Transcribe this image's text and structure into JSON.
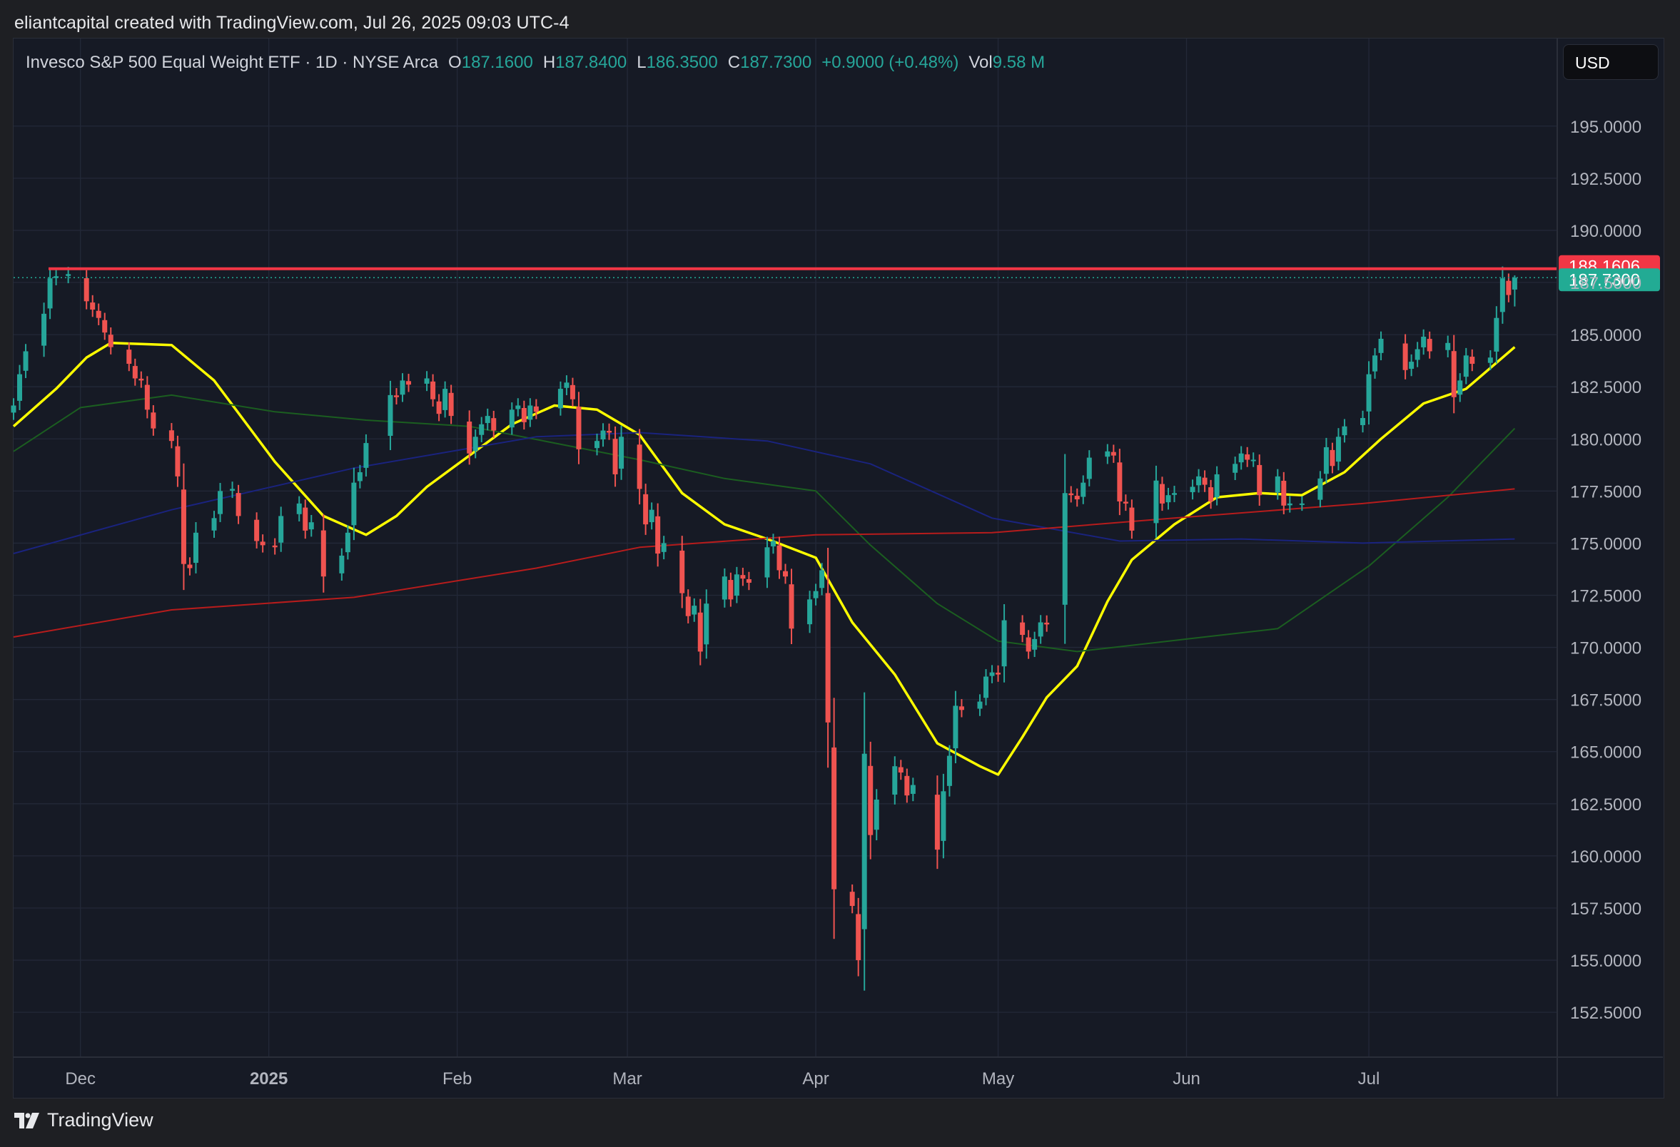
{
  "header": {
    "caption": "eliantcapital created with TradingView.com, Jul 26, 2025 09:03 UTC-4"
  },
  "legend": {
    "symbol": "Invesco S&P 500 Equal Weight ETF · 1D · NYSE Arca",
    "open_label": "O",
    "open": "187.1600",
    "high_label": "H",
    "high": "187.8400",
    "low_label": "L",
    "low": "186.3500",
    "close_label": "C",
    "close": "187.7300",
    "change": "+0.9000 (+0.48%)",
    "vol_label": "Vol",
    "vol": "9.58 M"
  },
  "currency_button": {
    "label": "USD"
  },
  "footer": {
    "brand": "TradingView"
  },
  "colors": {
    "up": "#26a69a",
    "down": "#ef5350",
    "background": "#161a25",
    "grid": "#232838",
    "ma_yellow": "#ffff00",
    "ma_green": "#1b5e20",
    "ma_blue": "#1a237e",
    "ma_red": "#b71c1c",
    "resistance": "#f23645"
  },
  "chart_data": {
    "type": "candlestick",
    "title": "",
    "y_axis": {
      "ylim": [
        150.35,
        199.2
      ],
      "ticks": [
        "195.0000",
        "192.5000",
        "190.0000",
        "187.5000",
        "185.0000",
        "182.5000",
        "180.0000",
        "177.5000",
        "175.0000",
        "172.5000",
        "170.0000",
        "167.5000",
        "165.0000",
        "162.5000",
        "160.0000",
        "157.5000",
        "155.0000",
        "152.5000"
      ]
    },
    "x_axis": {
      "start": "2024-11-20",
      "end": "2025-08-01",
      "ticks": [
        {
          "date": "2024-12-01",
          "label": "Dec",
          "bold": false
        },
        {
          "date": "2025-01-01",
          "label": "2025",
          "bold": true
        },
        {
          "date": "2025-02-01",
          "label": "Feb",
          "bold": false
        },
        {
          "date": "2025-03-01",
          "label": "Mar",
          "bold": false
        },
        {
          "date": "2025-04-01",
          "label": "Apr",
          "bold": false
        },
        {
          "date": "2025-05-01",
          "label": "May",
          "bold": false
        },
        {
          "date": "2025-06-01",
          "label": "Jun",
          "bold": false
        },
        {
          "date": "2025-07-01",
          "label": "Jul",
          "bold": false
        }
      ]
    },
    "price_labels": [
      {
        "value": 188.1606,
        "label": "188.1606",
        "color": "#f23645"
      },
      {
        "value": 187.73,
        "label": "187.7300",
        "color": "#22ab94"
      }
    ],
    "resistance_level": 188.1606,
    "last_price": 187.73,
    "closes": [
      [
        "2024-11-20",
        181.6
      ],
      [
        "2024-11-21",
        183.1
      ],
      [
        "2024-11-22",
        184.2
      ],
      [
        "2024-11-25",
        186.0
      ],
      [
        "2024-11-26",
        187.7
      ],
      [
        "2024-11-27",
        187.8
      ],
      [
        "2024-11-29",
        187.9
      ],
      [
        "2024-12-02",
        186.6
      ],
      [
        "2024-12-03",
        186.2
      ],
      [
        "2024-12-04",
        185.8
      ],
      [
        "2024-12-05",
        185.1
      ],
      [
        "2024-12-06",
        184.4
      ],
      [
        "2024-12-09",
        183.6
      ],
      [
        "2024-12-10",
        182.9
      ],
      [
        "2024-12-11",
        182.8
      ],
      [
        "2024-12-12",
        181.4
      ],
      [
        "2024-12-13",
        180.5
      ],
      [
        "2024-12-16",
        179.9
      ],
      [
        "2024-12-17",
        178.2
      ],
      [
        "2024-12-18",
        174.0
      ],
      [
        "2024-12-19",
        173.8
      ],
      [
        "2024-12-20",
        175.5
      ],
      [
        "2024-12-23",
        176.2
      ],
      [
        "2024-12-24",
        177.5
      ],
      [
        "2024-12-26",
        177.6
      ],
      [
        "2024-12-27",
        176.3
      ],
      [
        "2024-12-30",
        175.1
      ],
      [
        "2024-12-31",
        174.9
      ],
      [
        "2025-01-02",
        174.8
      ],
      [
        "2025-01-03",
        176.3
      ],
      [
        "2025-01-06",
        176.9
      ],
      [
        "2025-01-07",
        175.6
      ],
      [
        "2025-01-08",
        176.0
      ],
      [
        "2025-01-10",
        173.4
      ],
      [
        "2025-01-13",
        174.4
      ],
      [
        "2025-01-14",
        175.5
      ],
      [
        "2025-01-15",
        177.9
      ],
      [
        "2025-01-16",
        178.4
      ],
      [
        "2025-01-17",
        179.8
      ],
      [
        "2025-01-21",
        182.1
      ],
      [
        "2025-01-22",
        182.0
      ],
      [
        "2025-01-23",
        182.8
      ],
      [
        "2025-01-24",
        182.6
      ],
      [
        "2025-01-27",
        182.9
      ],
      [
        "2025-01-28",
        181.9
      ],
      [
        "2025-01-29",
        181.2
      ],
      [
        "2025-01-30",
        182.4
      ],
      [
        "2025-01-31",
        181.1
      ],
      [
        "2025-02-03",
        179.3
      ],
      [
        "2025-02-04",
        180.1
      ],
      [
        "2025-02-05",
        180.7
      ],
      [
        "2025-02-06",
        181.1
      ],
      [
        "2025-02-07",
        180.4
      ],
      [
        "2025-02-10",
        181.4
      ],
      [
        "2025-02-11",
        181.6
      ],
      [
        "2025-02-12",
        180.8
      ],
      [
        "2025-02-13",
        181.6
      ],
      [
        "2025-02-14",
        181.3
      ],
      [
        "2025-02-18",
        182.4
      ],
      [
        "2025-02-19",
        182.7
      ],
      [
        "2025-02-20",
        181.9
      ],
      [
        "2025-02-21",
        179.5
      ],
      [
        "2025-02-24",
        179.9
      ],
      [
        "2025-02-25",
        180.4
      ],
      [
        "2025-02-26",
        180.3
      ],
      [
        "2025-02-27",
        178.3
      ],
      [
        "2025-02-28",
        180.1
      ],
      [
        "2025-03-03",
        177.6
      ],
      [
        "2025-03-04",
        175.9
      ],
      [
        "2025-03-05",
        176.6
      ],
      [
        "2025-03-06",
        174.5
      ],
      [
        "2025-03-07",
        175.0
      ],
      [
        "2025-03-10",
        172.6
      ],
      [
        "2025-03-11",
        171.5
      ],
      [
        "2025-03-12",
        172.0
      ],
      [
        "2025-03-13",
        169.8
      ],
      [
        "2025-03-14",
        172.1
      ],
      [
        "2025-03-17",
        173.4
      ],
      [
        "2025-03-18",
        172.3
      ],
      [
        "2025-03-19",
        173.5
      ],
      [
        "2025-03-20",
        173.3
      ],
      [
        "2025-03-21",
        173.1
      ],
      [
        "2025-03-24",
        174.8
      ],
      [
        "2025-03-25",
        175.1
      ],
      [
        "2025-03-26",
        173.7
      ],
      [
        "2025-03-27",
        173.4
      ],
      [
        "2025-03-28",
        170.9
      ],
      [
        "2025-03-31",
        172.3
      ],
      [
        "2025-04-01",
        172.7
      ],
      [
        "2025-04-02",
        173.7
      ],
      [
        "2025-04-03",
        166.4
      ],
      [
        "2025-04-04",
        158.4
      ],
      [
        "2025-04-07",
        157.6
      ],
      [
        "2025-04-08",
        155.0
      ],
      [
        "2025-04-09",
        164.9
      ],
      [
        "2025-04-10",
        161.0
      ],
      [
        "2025-04-11",
        162.7
      ],
      [
        "2025-04-14",
        164.3
      ],
      [
        "2025-04-15",
        164.0
      ],
      [
        "2025-04-16",
        162.9
      ],
      [
        "2025-04-17",
        163.4
      ],
      [
        "2025-04-21",
        160.3
      ],
      [
        "2025-04-22",
        163.1
      ],
      [
        "2025-04-23",
        164.8
      ],
      [
        "2025-04-24",
        167.2
      ],
      [
        "2025-04-25",
        167.0
      ],
      [
        "2025-04-28",
        167.4
      ],
      [
        "2025-04-29",
        168.6
      ],
      [
        "2025-04-30",
        168.8
      ],
      [
        "2025-05-01",
        168.7
      ],
      [
        "2025-05-02",
        171.3
      ],
      [
        "2025-05-05",
        170.6
      ],
      [
        "2025-05-06",
        169.8
      ],
      [
        "2025-05-07",
        170.4
      ],
      [
        "2025-05-08",
        171.2
      ],
      [
        "2025-05-09",
        171.1
      ],
      [
        "2025-05-12",
        177.4
      ],
      [
        "2025-05-13",
        177.3
      ],
      [
        "2025-05-14",
        177.1
      ],
      [
        "2025-05-15",
        177.9
      ],
      [
        "2025-05-16",
        179.1
      ],
      [
        "2025-05-19",
        179.4
      ],
      [
        "2025-05-20",
        179.2
      ],
      [
        "2025-05-21",
        177.0
      ],
      [
        "2025-05-22",
        176.9
      ],
      [
        "2025-05-23",
        175.6
      ],
      [
        "2025-05-27",
        178.0
      ],
      [
        "2025-05-28",
        176.9
      ],
      [
        "2025-05-29",
        177.3
      ],
      [
        "2025-05-30",
        177.4
      ],
      [
        "2025-06-02",
        177.7
      ],
      [
        "2025-06-03",
        178.2
      ],
      [
        "2025-06-04",
        177.8
      ],
      [
        "2025-06-05",
        177.0
      ],
      [
        "2025-06-06",
        178.3
      ],
      [
        "2025-06-09",
        178.8
      ],
      [
        "2025-06-10",
        179.3
      ],
      [
        "2025-06-11",
        179.0
      ],
      [
        "2025-06-12",
        179.0
      ],
      [
        "2025-06-13",
        177.3
      ],
      [
        "2025-06-16",
        178.2
      ],
      [
        "2025-06-17",
        176.8
      ],
      [
        "2025-06-18",
        176.9
      ],
      [
        "2025-06-20",
        176.9
      ],
      [
        "2025-06-23",
        178.1
      ],
      [
        "2025-06-24",
        179.6
      ],
      [
        "2025-06-25",
        178.7
      ],
      [
        "2025-06-26",
        180.1
      ],
      [
        "2025-06-27",
        180.6
      ],
      [
        "2025-06-30",
        181.0
      ],
      [
        "2025-07-01",
        183.1
      ],
      [
        "2025-07-02",
        184.0
      ],
      [
        "2025-07-03",
        184.8
      ],
      [
        "2025-07-07",
        183.3
      ],
      [
        "2025-07-08",
        183.7
      ],
      [
        "2025-07-09",
        184.3
      ],
      [
        "2025-07-10",
        184.9
      ],
      [
        "2025-07-11",
        184.2
      ],
      [
        "2025-07-14",
        184.6
      ],
      [
        "2025-07-15",
        182.0
      ],
      [
        "2025-07-16",
        182.8
      ],
      [
        "2025-07-17",
        184.0
      ],
      [
        "2025-07-18",
        183.6
      ],
      [
        "2025-07-21",
        183.9
      ],
      [
        "2025-07-22",
        185.8
      ],
      [
        "2025-07-23",
        187.7
      ],
      [
        "2025-07-24",
        186.9
      ],
      [
        "2025-07-25",
        187.73
      ]
    ],
    "moving_averages": [
      {
        "color": "#ffff00",
        "width": 3.5,
        "points": [
          [
            "2024-11-20",
            180.6
          ],
          [
            "2024-11-27",
            182.4
          ],
          [
            "2024-12-02",
            183.9
          ],
          [
            "2024-12-06",
            184.6
          ],
          [
            "2024-12-16",
            184.5
          ],
          [
            "2024-12-23",
            182.8
          ],
          [
            "2025-01-02",
            178.9
          ],
          [
            "2025-01-10",
            176.3
          ],
          [
            "2025-01-17",
            175.4
          ],
          [
            "2025-01-22",
            176.3
          ],
          [
            "2025-01-27",
            177.7
          ],
          [
            "2025-02-03",
            179.2
          ],
          [
            "2025-02-10",
            180.7
          ],
          [
            "2025-02-17",
            181.6
          ],
          [
            "2025-02-24",
            181.4
          ],
          [
            "2025-03-03",
            180.2
          ],
          [
            "2025-03-10",
            177.4
          ],
          [
            "2025-03-17",
            175.9
          ],
          [
            "2025-03-24",
            175.2
          ],
          [
            "2025-04-01",
            174.3
          ],
          [
            "2025-04-07",
            171.2
          ],
          [
            "2025-04-14",
            168.7
          ],
          [
            "2025-04-21",
            165.4
          ],
          [
            "2025-04-28",
            164.3
          ],
          [
            "2025-05-01",
            163.9
          ],
          [
            "2025-05-05",
            165.7
          ],
          [
            "2025-05-09",
            167.6
          ],
          [
            "2025-05-14",
            169.1
          ],
          [
            "2025-05-19",
            172.2
          ],
          [
            "2025-05-23",
            174.2
          ],
          [
            "2025-05-30",
            175.9
          ],
          [
            "2025-06-06",
            177.2
          ],
          [
            "2025-06-13",
            177.4
          ],
          [
            "2025-06-20",
            177.3
          ],
          [
            "2025-06-27",
            178.4
          ],
          [
            "2025-07-03",
            180.0
          ],
          [
            "2025-07-10",
            181.7
          ],
          [
            "2025-07-17",
            182.4
          ],
          [
            "2025-07-25",
            184.4
          ]
        ]
      },
      {
        "color": "#1b5e20",
        "width": 2,
        "points": [
          [
            "2024-11-20",
            179.4
          ],
          [
            "2024-12-01",
            181.5
          ],
          [
            "2024-12-16",
            182.1
          ],
          [
            "2025-01-02",
            181.3
          ],
          [
            "2025-01-17",
            180.9
          ],
          [
            "2025-02-03",
            180.6
          ],
          [
            "2025-02-17",
            179.8
          ],
          [
            "2025-03-03",
            179.0
          ],
          [
            "2025-03-17",
            178.1
          ],
          [
            "2025-04-01",
            177.5
          ],
          [
            "2025-04-10",
            174.9
          ],
          [
            "2025-04-21",
            172.1
          ],
          [
            "2025-05-01",
            170.3
          ],
          [
            "2025-05-14",
            169.8
          ],
          [
            "2025-06-01",
            170.4
          ],
          [
            "2025-06-16",
            170.9
          ],
          [
            "2025-07-01",
            173.9
          ],
          [
            "2025-07-14",
            177.2
          ],
          [
            "2025-07-25",
            180.5
          ]
        ]
      },
      {
        "color": "#1a237e",
        "width": 2,
        "points": [
          [
            "2024-11-20",
            174.5
          ],
          [
            "2024-12-16",
            176.6
          ],
          [
            "2025-01-15",
            178.6
          ],
          [
            "2025-02-14",
            180.1
          ],
          [
            "2025-03-03",
            180.3
          ],
          [
            "2025-03-24",
            179.9
          ],
          [
            "2025-04-10",
            178.8
          ],
          [
            "2025-04-30",
            176.2
          ],
          [
            "2025-05-21",
            175.1
          ],
          [
            "2025-06-10",
            175.2
          ],
          [
            "2025-06-30",
            175.0
          ],
          [
            "2025-07-25",
            175.2
          ]
        ]
      },
      {
        "color": "#b71c1c",
        "width": 2,
        "points": [
          [
            "2024-11-20",
            170.5
          ],
          [
            "2024-12-16",
            171.8
          ],
          [
            "2025-01-15",
            172.4
          ],
          [
            "2025-02-14",
            173.8
          ],
          [
            "2025-03-03",
            174.8
          ],
          [
            "2025-04-01",
            175.4
          ],
          [
            "2025-04-30",
            175.5
          ],
          [
            "2025-05-30",
            176.2
          ],
          [
            "2025-06-30",
            176.9
          ],
          [
            "2025-07-25",
            177.6
          ]
        ]
      }
    ]
  }
}
